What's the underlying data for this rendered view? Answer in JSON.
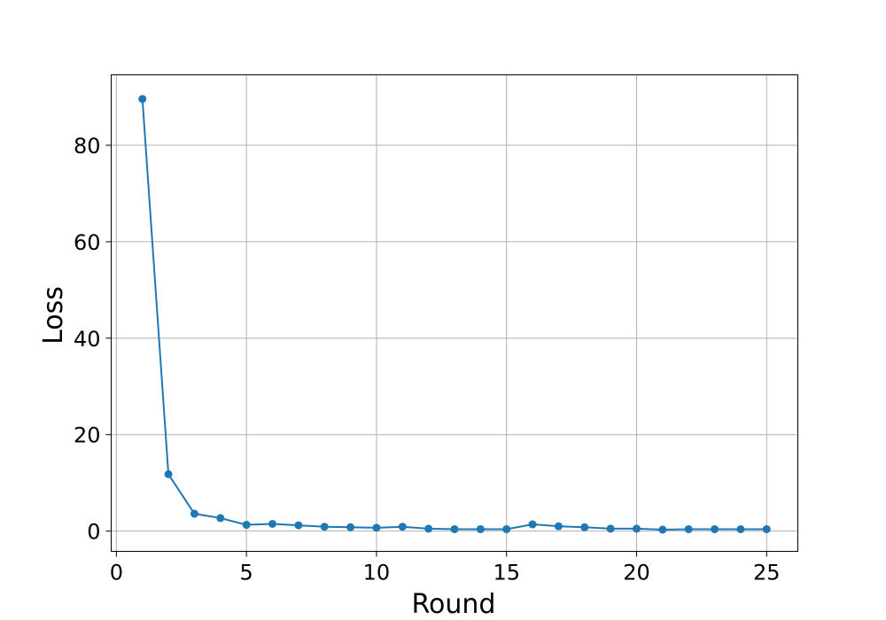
{
  "chart_data": {
    "type": "line",
    "title": "",
    "xlabel": "Round",
    "ylabel": "Loss",
    "xlim": [
      -0.2,
      26.2
    ],
    "ylim": [
      -4.2,
      94.6
    ],
    "xticks": [
      0,
      5,
      10,
      15,
      20,
      25
    ],
    "yticks": [
      0,
      20,
      40,
      60,
      80
    ],
    "grid": true,
    "series": [
      {
        "color": "#1f77b4",
        "marker": "circle",
        "x": [
          1,
          2,
          3,
          4,
          5,
          6,
          7,
          8,
          9,
          10,
          11,
          12,
          13,
          14,
          15,
          16,
          17,
          18,
          19,
          20,
          21,
          22,
          23,
          24,
          25
        ],
        "y": [
          89.6,
          11.8,
          3.6,
          2.7,
          1.3,
          1.5,
          1.2,
          0.9,
          0.8,
          0.7,
          0.9,
          0.5,
          0.4,
          0.4,
          0.4,
          1.4,
          1.0,
          0.8,
          0.5,
          0.5,
          0.3,
          0.4,
          0.4,
          0.4,
          0.4
        ]
      }
    ]
  }
}
